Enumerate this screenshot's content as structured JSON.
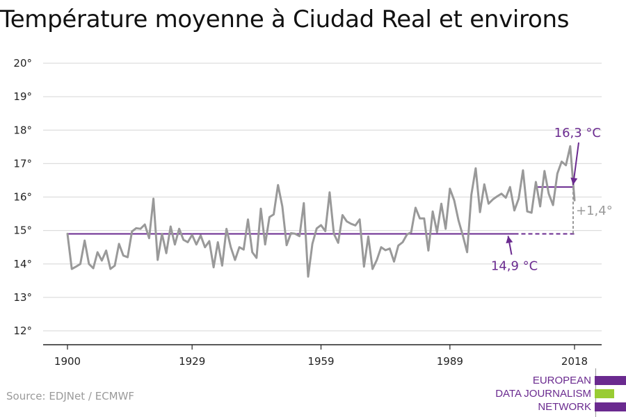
{
  "title": "Température moyenne à Ciudad Real et environs",
  "source": "Source: EDJNet / ECMWF",
  "logo": {
    "lines": [
      "EUROPEAN",
      "DATA JOURNALISM",
      "NETWORK"
    ]
  },
  "colors": {
    "series": "#999999",
    "accent": "#6a2a8f",
    "logo_green": "#99cc33",
    "grid": "#dddddd"
  },
  "chart_data": {
    "type": "line",
    "title": "Température moyenne à Ciudad Real et environs",
    "xlabel": "",
    "ylabel": "",
    "xlim": [
      1900,
      2018
    ],
    "ylim": [
      12,
      20
    ],
    "x_ticks": [
      1900,
      1929,
      1959,
      1989,
      2018
    ],
    "x_tick_labels": [
      "1900",
      "1929",
      "1959",
      "1989",
      "2018"
    ],
    "y_ticks": [
      12,
      13,
      14,
      15,
      16,
      17,
      18,
      19,
      20
    ],
    "y_tick_labels": [
      "12°",
      "13°",
      "14°",
      "15°",
      "16°",
      "17°",
      "18°",
      "19°",
      "20°"
    ],
    "grid": "horizontal",
    "x": [
      1900,
      1901,
      1902,
      1903,
      1904,
      1905,
      1906,
      1907,
      1908,
      1909,
      1910,
      1911,
      1912,
      1913,
      1914,
      1915,
      1916,
      1917,
      1918,
      1919,
      1920,
      1921,
      1922,
      1923,
      1924,
      1925,
      1926,
      1927,
      1928,
      1929,
      1930,
      1931,
      1932,
      1933,
      1934,
      1935,
      1936,
      1937,
      1938,
      1939,
      1940,
      1941,
      1942,
      1943,
      1944,
      1945,
      1946,
      1947,
      1948,
      1949,
      1950,
      1951,
      1952,
      1953,
      1954,
      1955,
      1956,
      1957,
      1958,
      1959,
      1960,
      1961,
      1962,
      1963,
      1964,
      1965,
      1966,
      1967,
      1968,
      1969,
      1970,
      1971,
      1972,
      1973,
      1974,
      1975,
      1976,
      1977,
      1978,
      1979,
      1980,
      1981,
      1982,
      1983,
      1984,
      1985,
      1986,
      1987,
      1988,
      1989,
      1990,
      1991,
      1992,
      1993,
      1994,
      1995,
      1996,
      1997,
      1998,
      1999,
      2000,
      2001,
      2002,
      2003,
      2004,
      2005,
      2006,
      2007,
      2008,
      2009,
      2010,
      2011,
      2012,
      2013,
      2014,
      2015,
      2016,
      2017,
      2018
    ],
    "values": [
      14.9,
      13.85,
      13.92,
      14.0,
      14.7,
      14.0,
      13.87,
      14.35,
      14.1,
      14.4,
      13.85,
      13.95,
      14.6,
      14.25,
      14.2,
      14.97,
      15.07,
      15.05,
      15.18,
      14.77,
      15.95,
      14.12,
      14.9,
      14.32,
      15.12,
      14.58,
      15.05,
      14.72,
      14.65,
      14.87,
      14.58,
      14.85,
      14.5,
      14.68,
      13.9,
      14.65,
      13.95,
      15.05,
      14.5,
      14.12,
      14.5,
      14.43,
      15.33,
      14.35,
      14.18,
      15.65,
      14.58,
      15.4,
      15.48,
      16.36,
      15.72,
      14.56,
      14.92,
      14.9,
      14.83,
      15.82,
      13.62,
      14.6,
      15.06,
      15.16,
      14.98,
      16.14,
      14.9,
      14.63,
      15.46,
      15.27,
      15.2,
      15.15,
      15.33,
      13.92,
      14.82,
      13.85,
      14.12,
      14.5,
      14.41,
      14.46,
      14.07,
      14.55,
      14.65,
      14.88,
      14.95,
      15.68,
      15.36,
      15.36,
      14.4,
      15.57,
      14.95,
      15.8,
      15.05,
      16.25,
      15.9,
      15.3,
      14.85,
      14.35,
      16.07,
      16.86,
      15.55,
      16.38,
      15.8,
      15.93,
      16.02,
      16.1,
      15.98,
      16.3,
      15.6,
      15.95,
      16.8,
      15.57,
      15.53,
      16.45,
      15.72,
      16.78,
      16.1,
      15.76,
      16.7,
      17.06,
      16.95,
      17.52,
      15.9
    ],
    "series_name": "",
    "reference": {
      "value": 14.9,
      "label": "14,9 °C",
      "from": 1900,
      "to": 2004,
      "projected_to": 2018
    },
    "recent": {
      "value": 16.3,
      "label": "16,3 °C",
      "from": 2009,
      "to": 2018
    },
    "difference": {
      "value": 1.4,
      "label": "+1,4°"
    }
  }
}
